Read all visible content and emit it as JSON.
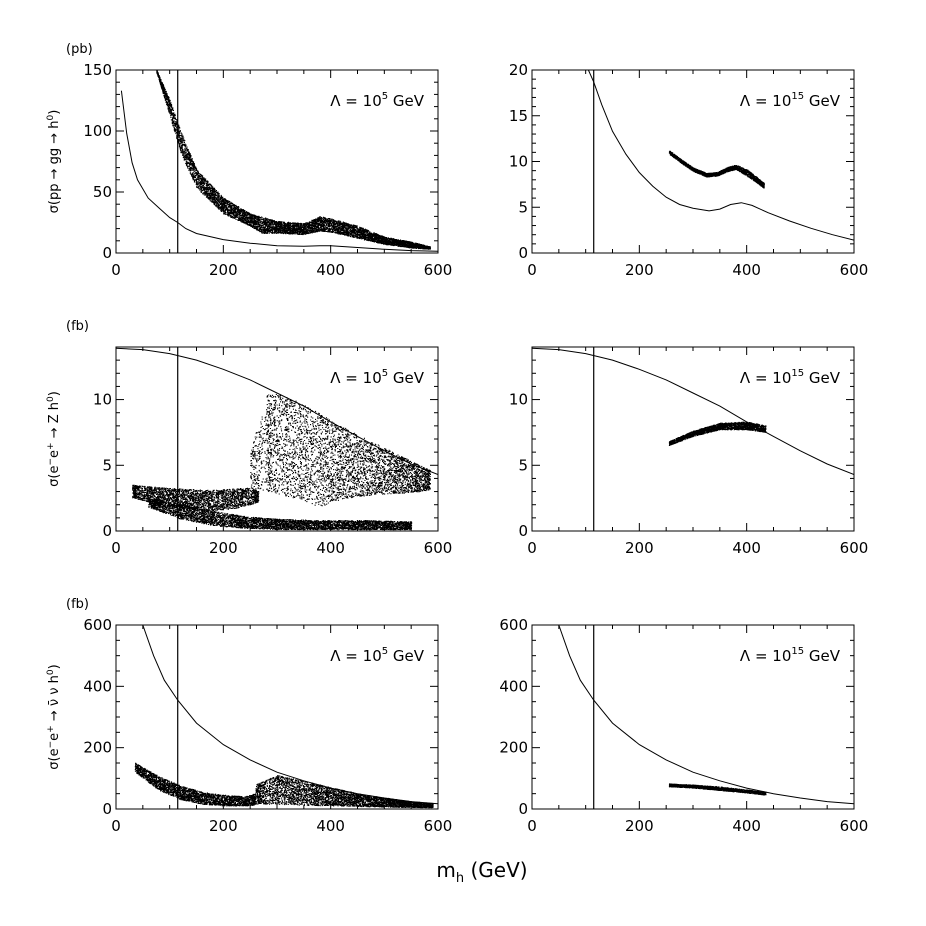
{
  "figure": {
    "xlabel": "m",
    "xlabel_sub": "h",
    "xlabel_unit": " (GeV)"
  },
  "rows": [
    {
      "unit": "(pb)",
      "ylabel_parts": [
        {
          "t": "σ(pp → gg → h"
        },
        {
          "t": "0",
          "sup": true
        },
        {
          "t": ")"
        }
      ]
    },
    {
      "unit": "(fb)",
      "ylabel_parts": [
        {
          "t": "σ(e"
        },
        {
          "t": "−",
          "sup": true
        },
        {
          "t": "e"
        },
        {
          "t": "+",
          "sup": true
        },
        {
          "t": " → Z h"
        },
        {
          "t": "0",
          "sup": true
        },
        {
          "t": ")"
        }
      ]
    },
    {
      "unit": "(fb)",
      "ylabel_parts": [
        {
          "t": "σ(e"
        },
        {
          "t": "−",
          "sup": true
        },
        {
          "t": "e"
        },
        {
          "t": "+",
          "sup": true
        },
        {
          "t": " → ν̄ ν h"
        },
        {
          "t": "0",
          "sup": true
        },
        {
          "t": ")"
        }
      ]
    }
  ],
  "chart_data": [
    {
      "id": "ggh-low",
      "type": "scatter",
      "row": 0,
      "col": 0,
      "annotation": {
        "prefix": "Λ = 10",
        "exp": "5",
        "suffix": " GeV"
      },
      "xlim": [
        0,
        600
      ],
      "ylim": [
        0,
        150
      ],
      "xticks": [
        0,
        200,
        400,
        600
      ],
      "yticks": [
        0,
        50,
        100,
        150
      ],
      "minor_x": 50,
      "minor_y": 10,
      "vline": 115,
      "curve": [
        [
          10,
          133
        ],
        [
          20,
          98
        ],
        [
          30,
          74
        ],
        [
          40,
          60
        ],
        [
          60,
          45
        ],
        [
          80,
          37
        ],
        [
          100,
          29
        ],
        [
          115,
          25
        ],
        [
          130,
          20
        ],
        [
          150,
          16
        ],
        [
          200,
          11
        ],
        [
          250,
          8
        ],
        [
          300,
          6
        ],
        [
          350,
          5.5
        ],
        [
          380,
          6
        ],
        [
          400,
          6
        ],
        [
          450,
          4.5
        ],
        [
          500,
          3
        ],
        [
          550,
          2
        ],
        [
          600,
          1.4
        ]
      ],
      "scatter_band": {
        "density": 26,
        "upper": [
          [
            75,
            150
          ],
          [
            100,
            125
          ],
          [
            120,
            100
          ],
          [
            150,
            68
          ],
          [
            200,
            45
          ],
          [
            250,
            32
          ],
          [
            300,
            26
          ],
          [
            350,
            24
          ],
          [
            380,
            30
          ],
          [
            400,
            28
          ],
          [
            450,
            22
          ],
          [
            500,
            13
          ],
          [
            550,
            9
          ],
          [
            585,
            5
          ]
        ],
        "lower": [
          [
            75,
            148
          ],
          [
            100,
            112
          ],
          [
            120,
            82
          ],
          [
            150,
            53
          ],
          [
            200,
            32
          ],
          [
            250,
            22
          ],
          [
            270,
            16
          ],
          [
            300,
            16
          ],
          [
            350,
            15
          ],
          [
            380,
            18
          ],
          [
            400,
            17
          ],
          [
            450,
            12
          ],
          [
            500,
            7
          ],
          [
            550,
            4
          ],
          [
            585,
            3
          ]
        ]
      }
    },
    {
      "id": "ggh-high",
      "type": "scatter",
      "row": 0,
      "col": 1,
      "annotation": {
        "prefix": "Λ = 10",
        "exp": "15",
        "suffix": " GeV"
      },
      "xlim": [
        0,
        600
      ],
      "ylim": [
        0,
        20
      ],
      "xticks": [
        0,
        200,
        400,
        600
      ],
      "yticks": [
        0,
        5,
        10,
        15,
        20
      ],
      "minor_x": 50,
      "minor_y": 1,
      "vline": 115,
      "curve": [
        [
          105,
          20
        ],
        [
          115,
          18.7
        ],
        [
          130,
          16.2
        ],
        [
          150,
          13.3
        ],
        [
          175,
          10.8
        ],
        [
          200,
          8.8
        ],
        [
          225,
          7.3
        ],
        [
          250,
          6.1
        ],
        [
          275,
          5.3
        ],
        [
          300,
          4.9
        ],
        [
          330,
          4.6
        ],
        [
          350,
          4.8
        ],
        [
          370,
          5.3
        ],
        [
          390,
          5.5
        ],
        [
          410,
          5.2
        ],
        [
          440,
          4.4
        ],
        [
          480,
          3.5
        ],
        [
          520,
          2.7
        ],
        [
          560,
          2
        ],
        [
          600,
          1.4
        ]
      ],
      "scatter_band": {
        "density": 22,
        "upper": [
          [
            255,
            11.2
          ],
          [
            280,
            10.1
          ],
          [
            300,
            9.3
          ],
          [
            325,
            8.7
          ],
          [
            345,
            8.8
          ],
          [
            365,
            9.4
          ],
          [
            380,
            9.6
          ],
          [
            400,
            9.1
          ],
          [
            420,
            8.2
          ],
          [
            432,
            7.6
          ]
        ],
        "lower": [
          [
            255,
            10.8
          ],
          [
            280,
            9.7
          ],
          [
            300,
            8.9
          ],
          [
            325,
            8.3
          ],
          [
            345,
            8.4
          ],
          [
            365,
            8.9
          ],
          [
            380,
            9.1
          ],
          [
            400,
            8.4
          ],
          [
            420,
            7.6
          ],
          [
            432,
            7.0
          ]
        ]
      }
    },
    {
      "id": "zh-low",
      "type": "scatter",
      "row": 1,
      "col": 0,
      "annotation": {
        "prefix": "Λ = 10",
        "exp": "5",
        "suffix": " GeV"
      },
      "xlim": [
        0,
        600
      ],
      "ylim": [
        0,
        14
      ],
      "xticks": [
        0,
        200,
        400,
        600
      ],
      "yticks": [
        0,
        5,
        10
      ],
      "minor_x": 50,
      "minor_y": 1,
      "vline": 115,
      "curve": [
        [
          0,
          13.9
        ],
        [
          50,
          13.8
        ],
        [
          100,
          13.5
        ],
        [
          150,
          13
        ],
        [
          200,
          12.3
        ],
        [
          250,
          11.5
        ],
        [
          300,
          10.5
        ],
        [
          350,
          9.5
        ],
        [
          400,
          8.3
        ],
        [
          450,
          7.2
        ],
        [
          500,
          6.1
        ],
        [
          550,
          5.1
        ],
        [
          600,
          4.3
        ]
      ],
      "scatter_band": [
        {
          "density": 20,
          "upper": [
            [
              30,
              3.5
            ],
            [
              80,
              3.3
            ],
            [
              120,
              3.2
            ],
            [
              170,
              3.1
            ],
            [
              220,
              3.2
            ],
            [
              250,
              3.3
            ],
            [
              265,
              3
            ]
          ],
          "lower": [
            [
              30,
              2.5
            ],
            [
              80,
              2.0
            ],
            [
              120,
              1.7
            ],
            [
              170,
              1.5
            ],
            [
              220,
              1.7
            ],
            [
              250,
              2.0
            ],
            [
              265,
              2.2
            ]
          ]
        },
        {
          "density": 18,
          "upper": [
            [
              60,
              2.5
            ],
            [
              120,
              2.0
            ],
            [
              180,
              1.5
            ],
            [
              240,
              1.1
            ],
            [
              300,
              0.9
            ],
            [
              380,
              0.8
            ],
            [
              460,
              0.8
            ],
            [
              550,
              0.7
            ]
          ],
          "lower": [
            [
              60,
              1.8
            ],
            [
              120,
              0.9
            ],
            [
              180,
              0.4
            ],
            [
              240,
              0.2
            ],
            [
              300,
              0.1
            ],
            [
              380,
              0.1
            ],
            [
              460,
              0.1
            ],
            [
              550,
              0.1
            ]
          ]
        },
        {
          "density": 24,
          "upper": [
            [
              280,
              10.4
            ],
            [
              300,
              10.5
            ],
            [
              350,
              9.6
            ],
            [
              400,
              8.4
            ],
            [
              450,
              7.3
            ],
            [
              500,
              6.3
            ],
            [
              550,
              5.3
            ],
            [
              585,
              4.6
            ]
          ],
          "lower": [
            [
              280,
              3.0
            ],
            [
              300,
              2.8
            ],
            [
              350,
              2.3
            ],
            [
              380,
              1.8
            ],
            [
              400,
              2.2
            ],
            [
              450,
              2.6
            ],
            [
              500,
              2.8
            ],
            [
              550,
              2.9
            ],
            [
              585,
              3.1
            ]
          ]
        },
        {
          "density": 14,
          "upper": [
            [
              250,
              6.0
            ],
            [
              270,
              9.0
            ],
            [
              285,
              10.0
            ]
          ],
          "lower": [
            [
              250,
              3.0
            ],
            [
              270,
              3.0
            ],
            [
              285,
              3.0
            ]
          ]
        }
      ]
    },
    {
      "id": "zh-high",
      "type": "scatter",
      "row": 1,
      "col": 1,
      "annotation": {
        "prefix": "Λ = 10",
        "exp": "15",
        "suffix": " GeV"
      },
      "xlim": [
        0,
        600
      ],
      "ylim": [
        0,
        14
      ],
      "xticks": [
        0,
        200,
        400,
        600
      ],
      "yticks": [
        0,
        5,
        10
      ],
      "minor_x": 50,
      "minor_y": 1,
      "vline": 115,
      "curve": [
        [
          0,
          13.9
        ],
        [
          50,
          13.8
        ],
        [
          100,
          13.5
        ],
        [
          150,
          13
        ],
        [
          200,
          12.3
        ],
        [
          250,
          11.5
        ],
        [
          300,
          10.5
        ],
        [
          350,
          9.5
        ],
        [
          400,
          8.3
        ],
        [
          450,
          7.2
        ],
        [
          500,
          6.1
        ],
        [
          550,
          5.1
        ],
        [
          600,
          4.3
        ]
      ],
      "scatter_band": {
        "density": 22,
        "upper": [
          [
            255,
            6.8
          ],
          [
            300,
            7.6
          ],
          [
            350,
            8.2
          ],
          [
            400,
            8.3
          ],
          [
            435,
            8.0
          ]
        ],
        "lower": [
          [
            255,
            6.5
          ],
          [
            300,
            7.2
          ],
          [
            350,
            7.7
          ],
          [
            400,
            7.7
          ],
          [
            435,
            7.5
          ]
        ]
      }
    },
    {
      "id": "vvh-low",
      "type": "scatter",
      "row": 2,
      "col": 0,
      "annotation": {
        "prefix": "Λ = 10",
        "exp": "5",
        "suffix": " GeV"
      },
      "xlim": [
        0,
        600
      ],
      "ylim": [
        0,
        600
      ],
      "xticks": [
        0,
        200,
        400,
        600
      ],
      "yticks": [
        0,
        200,
        400,
        600
      ],
      "minor_x": 50,
      "minor_y": 50,
      "vline": 115,
      "curve": [
        [
          50,
          600
        ],
        [
          70,
          500
        ],
        [
          90,
          420
        ],
        [
          115,
          355
        ],
        [
          150,
          280
        ],
        [
          200,
          210
        ],
        [
          250,
          160
        ],
        [
          300,
          120
        ],
        [
          350,
          92
        ],
        [
          400,
          68
        ],
        [
          450,
          50
        ],
        [
          500,
          36
        ],
        [
          550,
          24
        ],
        [
          600,
          17
        ]
      ],
      "scatter_band": [
        {
          "density": 22,
          "upper": [
            [
              35,
              150
            ],
            [
              80,
              105
            ],
            [
              120,
              75
            ],
            [
              160,
              55
            ],
            [
              200,
              45
            ],
            [
              240,
              40
            ],
            [
              260,
              50
            ]
          ],
          "lower": [
            [
              35,
              120
            ],
            [
              80,
              60
            ],
            [
              120,
              30
            ],
            [
              160,
              15
            ],
            [
              200,
              10
            ],
            [
              240,
              10
            ],
            [
              260,
              12
            ]
          ]
        },
        {
          "density": 22,
          "upper": [
            [
              260,
              80
            ],
            [
              280,
              95
            ],
            [
              300,
              110
            ],
            [
              350,
              90
            ],
            [
              400,
              70
            ],
            [
              450,
              50
            ],
            [
              500,
              36
            ],
            [
              550,
              24
            ],
            [
              590,
              18
            ]
          ],
          "lower": [
            [
              260,
              15
            ],
            [
              280,
              15
            ],
            [
              300,
              15
            ],
            [
              350,
              12
            ],
            [
              400,
              10
            ],
            [
              450,
              8
            ],
            [
              500,
              6
            ],
            [
              550,
              5
            ],
            [
              590,
              4
            ]
          ]
        }
      ]
    },
    {
      "id": "vvh-high",
      "type": "scatter",
      "row": 2,
      "col": 1,
      "annotation": {
        "prefix": "Λ = 10",
        "exp": "15",
        "suffix": " GeV"
      },
      "xlim": [
        0,
        600
      ],
      "ylim": [
        0,
        600
      ],
      "xticks": [
        0,
        200,
        400,
        600
      ],
      "yticks": [
        0,
        200,
        400,
        600
      ],
      "minor_x": 50,
      "minor_y": 50,
      "vline": 115,
      "curve": [
        [
          50,
          600
        ],
        [
          70,
          500
        ],
        [
          90,
          420
        ],
        [
          115,
          355
        ],
        [
          150,
          280
        ],
        [
          200,
          210
        ],
        [
          250,
          160
        ],
        [
          300,
          120
        ],
        [
          350,
          92
        ],
        [
          400,
          68
        ],
        [
          450,
          50
        ],
        [
          500,
          36
        ],
        [
          550,
          24
        ],
        [
          600,
          17
        ]
      ],
      "scatter_band": {
        "density": 18,
        "upper": [
          [
            255,
            82
          ],
          [
            300,
            78
          ],
          [
            350,
            72
          ],
          [
            400,
            62
          ],
          [
            435,
            55
          ]
        ],
        "lower": [
          [
            255,
            72
          ],
          [
            300,
            68
          ],
          [
            350,
            60
          ],
          [
            400,
            52
          ],
          [
            435,
            45
          ]
        ]
      }
    }
  ]
}
